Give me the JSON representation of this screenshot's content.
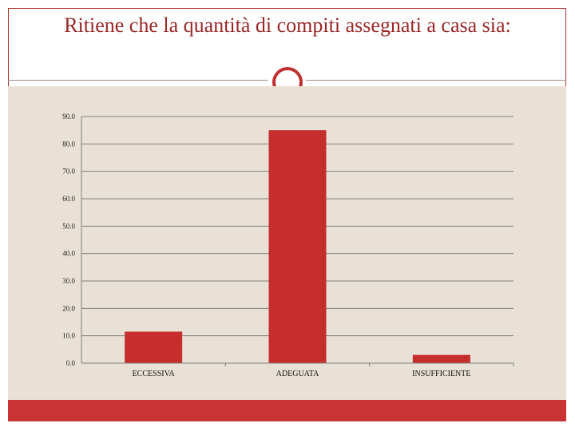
{
  "slide": {
    "title": "Ritiene che la quantità di compiti assegnati a casa sia:"
  },
  "colors": {
    "accent": "#c93333",
    "title": "#9b2727",
    "panel": "#e9e1d5",
    "gridline": "#7f7f7f"
  },
  "chart_data": {
    "type": "bar",
    "categories": [
      "ECCESSIVA",
      "ADEGUATA",
      "INSUFFICIENTE"
    ],
    "values": [
      11.5,
      85.0,
      3.0
    ],
    "ylim": [
      0,
      90
    ],
    "yticks": [
      "0.0",
      "10.0",
      "20.0",
      "30.0",
      "40.0",
      "50.0",
      "60.0",
      "70.0",
      "80.0",
      "90.0"
    ],
    "title": "",
    "xlabel": "",
    "ylabel": "",
    "grid": true,
    "bar_color": "#c62d2d"
  }
}
